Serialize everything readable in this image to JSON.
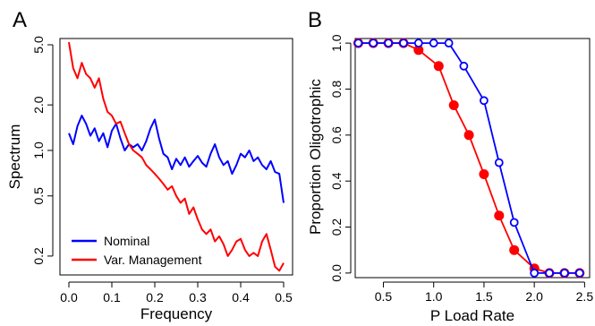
{
  "chart_data": [
    {
      "panel": "A",
      "type": "line",
      "xlabel": "Frequency",
      "ylabel": "Spectrum",
      "y_scale": "log",
      "xlim": [
        0,
        0.5
      ],
      "ylim": [
        0.15,
        5.5
      ],
      "x_ticks": [
        0.0,
        0.1,
        0.2,
        0.3,
        0.4,
        0.5
      ],
      "x_tick_labels": [
        "0.0",
        "0.1",
        "0.2",
        "0.3",
        "0.4",
        "0.5"
      ],
      "y_ticks": [
        0.2,
        0.5,
        1.0,
        2.0,
        5.0
      ],
      "y_tick_labels": [
        "0.2",
        "0.5",
        "1.0",
        "2.0",
        "5.0"
      ],
      "grid": false,
      "legend_position": "bottom-left",
      "series": [
        {
          "name": "Nominal",
          "color": "#0000ff",
          "x": [
            0.0,
            0.01,
            0.02,
            0.03,
            0.04,
            0.05,
            0.06,
            0.07,
            0.08,
            0.09,
            0.1,
            0.11,
            0.12,
            0.13,
            0.14,
            0.15,
            0.16,
            0.17,
            0.18,
            0.19,
            0.2,
            0.21,
            0.22,
            0.23,
            0.24,
            0.25,
            0.26,
            0.27,
            0.28,
            0.29,
            0.3,
            0.31,
            0.32,
            0.33,
            0.34,
            0.35,
            0.36,
            0.37,
            0.38,
            0.39,
            0.4,
            0.41,
            0.42,
            0.43,
            0.44,
            0.45,
            0.46,
            0.47,
            0.48,
            0.49,
            0.5
          ],
          "y": [
            1.3,
            1.1,
            1.45,
            1.7,
            1.5,
            1.25,
            1.4,
            1.15,
            1.3,
            1.05,
            1.35,
            1.5,
            1.2,
            1.0,
            1.1,
            1.05,
            1.1,
            1.0,
            1.15,
            1.4,
            1.6,
            1.2,
            0.95,
            0.9,
            0.75,
            0.88,
            0.8,
            0.9,
            0.78,
            0.85,
            0.92,
            0.83,
            0.78,
            0.95,
            1.1,
            0.9,
            0.8,
            0.85,
            0.7,
            0.8,
            0.95,
            0.9,
            1.0,
            0.85,
            0.9,
            0.8,
            0.75,
            0.85,
            0.72,
            0.7,
            0.45
          ]
        },
        {
          "name": "Var. Management",
          "color": "#ff0000",
          "x": [
            0.0,
            0.01,
            0.02,
            0.03,
            0.04,
            0.05,
            0.06,
            0.07,
            0.08,
            0.09,
            0.1,
            0.11,
            0.12,
            0.13,
            0.14,
            0.15,
            0.16,
            0.17,
            0.18,
            0.19,
            0.2,
            0.21,
            0.22,
            0.23,
            0.24,
            0.25,
            0.26,
            0.27,
            0.28,
            0.29,
            0.3,
            0.31,
            0.32,
            0.33,
            0.34,
            0.35,
            0.36,
            0.37,
            0.38,
            0.39,
            0.4,
            0.41,
            0.42,
            0.43,
            0.44,
            0.45,
            0.46,
            0.47,
            0.48,
            0.49,
            0.5
          ],
          "y": [
            5.2,
            3.5,
            3.0,
            3.8,
            3.2,
            3.0,
            2.6,
            3.0,
            2.2,
            1.8,
            1.7,
            1.5,
            1.55,
            1.3,
            1.1,
            1.0,
            0.95,
            0.9,
            0.8,
            0.75,
            0.7,
            0.65,
            0.6,
            0.55,
            0.58,
            0.5,
            0.45,
            0.48,
            0.38,
            0.42,
            0.35,
            0.3,
            0.28,
            0.3,
            0.25,
            0.27,
            0.24,
            0.2,
            0.22,
            0.25,
            0.26,
            0.22,
            0.2,
            0.21,
            0.2,
            0.25,
            0.28,
            0.22,
            0.17,
            0.16,
            0.18
          ]
        }
      ]
    },
    {
      "panel": "B",
      "type": "line",
      "xlabel": "P Load Rate",
      "ylabel": "Proportion Oligotrophic",
      "xlim": [
        0.22,
        2.55
      ],
      "ylim": [
        -0.02,
        1.02
      ],
      "x_ticks": [
        0.5,
        1.0,
        1.5,
        2.0,
        2.5
      ],
      "x_tick_labels": [
        "0.5",
        "1.0",
        "1.5",
        "2.0",
        "2.5"
      ],
      "y_ticks": [
        0.0,
        0.2,
        0.4,
        0.6,
        0.8,
        1.0
      ],
      "y_tick_labels": [
        "0.0",
        "0.2",
        "0.4",
        "0.6",
        "0.8",
        "1.0"
      ],
      "grid": false,
      "series": [
        {
          "marker": "filled-circle",
          "color": "#ff0000",
          "x": [
            0.25,
            0.4,
            0.55,
            0.7,
            0.85,
            1.05,
            1.2,
            1.35,
            1.5,
            1.65,
            1.8,
            2.0,
            2.15,
            2.3,
            2.45
          ],
          "y": [
            1.0,
            1.0,
            1.0,
            1.0,
            0.97,
            0.9,
            0.73,
            0.6,
            0.43,
            0.25,
            0.1,
            0.02,
            0.0,
            0.0,
            0.0
          ]
        },
        {
          "marker": "open-circle",
          "color": "#0000ff",
          "x": [
            0.25,
            0.4,
            0.55,
            0.7,
            0.85,
            1.0,
            1.15,
            1.3,
            1.5,
            1.65,
            1.8,
            2.0,
            2.15,
            2.3,
            2.45
          ],
          "y": [
            1.0,
            1.0,
            1.0,
            1.0,
            1.0,
            1.0,
            1.0,
            0.9,
            0.75,
            0.48,
            0.22,
            0.0,
            0.0,
            0.0,
            0.0
          ]
        }
      ]
    }
  ]
}
